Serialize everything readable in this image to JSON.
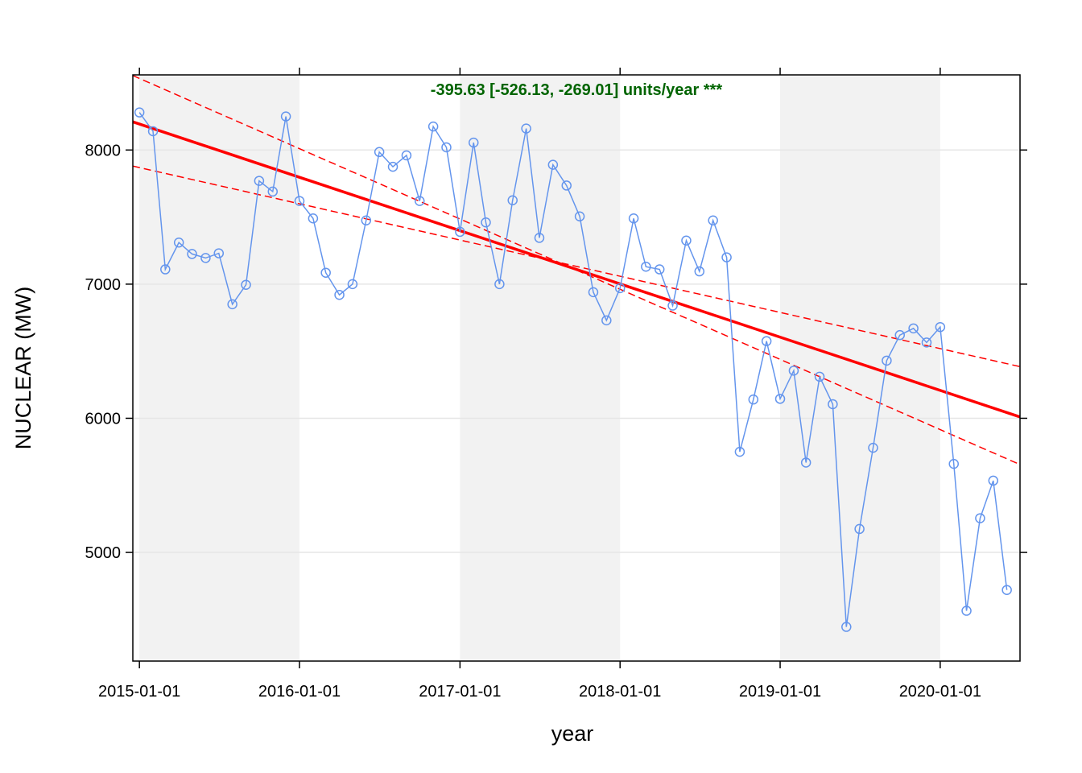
{
  "chart_data": {
    "type": "line",
    "xlabel": "year",
    "ylabel": "NUCLEAR (MW)",
    "x_tick_labels": [
      "2015-01-01",
      "2016-01-01",
      "2017-01-01",
      "2018-01-01",
      "2019-01-01",
      "2020-01-01"
    ],
    "y_ticks": [
      5000,
      6000,
      7000,
      8000
    ],
    "y_tick_labels": [
      "5000",
      "6000",
      "7000",
      "8000"
    ],
    "xlim": [
      "2014-12-17",
      "2020-07-01"
    ],
    "ylim": [
      4190,
      8560
    ],
    "grid": "horizontal",
    "shaded_years": [
      "2015",
      "2017",
      "2019"
    ],
    "annotation": "-395.63 [-526.13, -269.01] units/year ***",
    "series": [
      {
        "marker": "open-circle",
        "color": "#6495ED",
        "points": [
          [
            "2015-01-01",
            8280
          ],
          [
            "2015-02-01",
            8140
          ],
          [
            "2015-03-01",
            7110
          ],
          [
            "2015-04-01",
            7310
          ],
          [
            "2015-05-01",
            7225
          ],
          [
            "2015-06-01",
            7195
          ],
          [
            "2015-07-01",
            7230
          ],
          [
            "2015-08-01",
            6850
          ],
          [
            "2015-09-01",
            6995
          ],
          [
            "2015-10-01",
            7770
          ],
          [
            "2015-11-01",
            7690
          ],
          [
            "2015-12-01",
            8250
          ],
          [
            "2016-01-01",
            7620
          ],
          [
            "2016-02-01",
            7490
          ],
          [
            "2016-03-01",
            7085
          ],
          [
            "2016-04-01",
            6920
          ],
          [
            "2016-05-01",
            7000
          ],
          [
            "2016-06-01",
            7475
          ],
          [
            "2016-07-01",
            7985
          ],
          [
            "2016-08-01",
            7875
          ],
          [
            "2016-09-01",
            7960
          ],
          [
            "2016-10-01",
            7620
          ],
          [
            "2016-11-01",
            8175
          ],
          [
            "2016-12-01",
            8020
          ],
          [
            "2017-01-01",
            7390
          ],
          [
            "2017-02-01",
            8055
          ],
          [
            "2017-03-01",
            7460
          ],
          [
            "2017-04-01",
            7000
          ],
          [
            "2017-05-01",
            7625
          ],
          [
            "2017-06-01",
            8160
          ],
          [
            "2017-07-01",
            7345
          ],
          [
            "2017-08-01",
            7890
          ],
          [
            "2017-09-01",
            7735
          ],
          [
            "2017-10-01",
            7505
          ],
          [
            "2017-11-01",
            6940
          ],
          [
            "2017-12-01",
            6730
          ],
          [
            "2018-01-01",
            6970
          ],
          [
            "2018-02-01",
            7490
          ],
          [
            "2018-03-01",
            7130
          ],
          [
            "2018-04-01",
            7110
          ],
          [
            "2018-05-01",
            6840
          ],
          [
            "2018-06-01",
            7325
          ],
          [
            "2018-07-01",
            7095
          ],
          [
            "2018-08-01",
            7475
          ],
          [
            "2018-09-01",
            7200
          ],
          [
            "2018-10-01",
            5750
          ],
          [
            "2018-11-01",
            6140
          ],
          [
            "2018-12-01",
            6575
          ],
          [
            "2019-01-01",
            6145
          ],
          [
            "2019-02-01",
            6355
          ],
          [
            "2019-03-01",
            5670
          ],
          [
            "2019-04-01",
            6310
          ],
          [
            "2019-05-01",
            6105
          ],
          [
            "2019-06-01",
            4445
          ],
          [
            "2019-07-01",
            5175
          ],
          [
            "2019-08-01",
            5780
          ],
          [
            "2019-09-01",
            6430
          ],
          [
            "2019-10-01",
            6620
          ],
          [
            "2019-11-01",
            6670
          ],
          [
            "2019-12-01",
            6565
          ],
          [
            "2020-01-01",
            6680
          ],
          [
            "2020-02-01",
            5660
          ],
          [
            "2020-03-01",
            4565
          ],
          [
            "2020-04-01",
            5255
          ],
          [
            "2020-05-01",
            5535
          ],
          [
            "2020-06-01",
            4720
          ]
        ]
      }
    ],
    "trend": {
      "color": "#FF0000",
      "fit": {
        "start": [
          "2014-12-17",
          8210
        ],
        "end": [
          "2020-07-01",
          6010
        ]
      },
      "upper": {
        "start": [
          "2014-12-17",
          8555
        ],
        "end": [
          "2020-07-01",
          5655
        ]
      },
      "lower": {
        "start": [
          "2014-12-17",
          7880
        ],
        "end": [
          "2020-07-01",
          6385
        ]
      }
    },
    "colors": {
      "shade": "#F2F2F2",
      "grid": "#E6E6E6",
      "annotation": "#006400"
    }
  }
}
